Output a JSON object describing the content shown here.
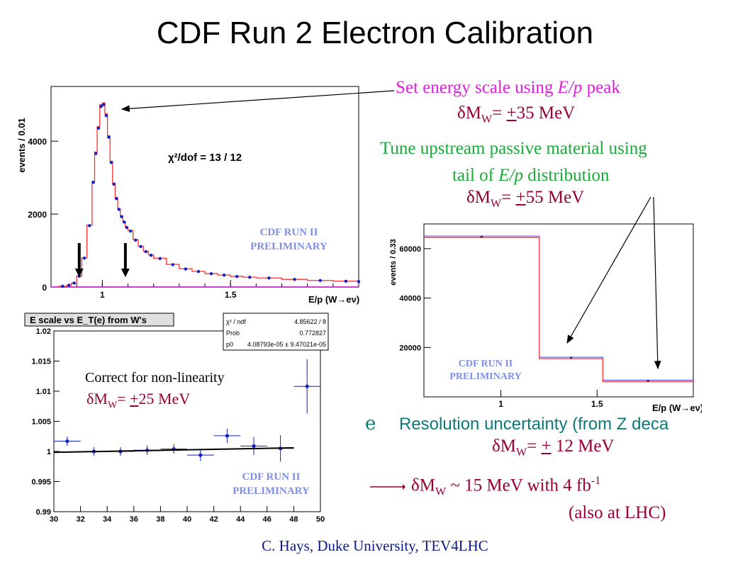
{
  "slide": {
    "title": "CDF Run 2 Electron Calibration",
    "footer": "C. Hays, Duke University, TEV4LHC"
  },
  "annotations": {
    "energy_scale": {
      "line1": "Set energy scale using ",
      "italic": "E/p",
      "line1_end": " peak",
      "delta": "δM",
      "sub": "W",
      "value_prefix": "= ",
      "pm": "+",
      "value": "35 MeV"
    },
    "material": {
      "line1": "Tune upstream passive material using",
      "line2_start": "tail of ",
      "italic": "E/p",
      "line2_end": " distribution",
      "delta": "δM",
      "sub": "W",
      "value_prefix": "= ",
      "pm": "+",
      "value": "55 MeV"
    },
    "nonlinearity": {
      "line1": "Correct for non-linearity",
      "delta": "δM",
      "sub": "W",
      "value_prefix": "= ",
      "pm": "+",
      "value": "25 MeV"
    },
    "resolution": {
      "bullet": "e",
      "text": "Resolution uncertainty (from Z deca",
      "delta": "δM",
      "sub": "W",
      "value_prefix": "= ",
      "pm": "+",
      "value": " 12 MeV"
    },
    "total": {
      "delta": "δM",
      "sub": "W",
      "text": " ~ 15 MeV with 4 fb",
      "sup": "-1",
      "note": "(also at LHC)"
    }
  },
  "colors": {
    "magenta": "#e020e0",
    "dark_red": "#990033",
    "green": "#1aaa3a",
    "teal": "#0b7a78",
    "hist": "#ff3030",
    "points": "#1020c0",
    "prelim": "#7f8fe6"
  },
  "prelim_label": {
    "line1": "CDF RUN II",
    "line2": "PRELIMINARY"
  },
  "chart_data": [
    {
      "type": "line",
      "title": "",
      "xlabel": "E/p (W→eν)",
      "ylabel": "events / 0.01",
      "xlim": [
        0.8,
        2.0
      ],
      "ylim": [
        0,
        5500
      ],
      "xticks": [
        "1",
        "1.5"
      ],
      "yticks": [
        "0",
        "2000",
        "4000"
      ],
      "annotation": "χ²/dof = 13 / 12",
      "x": [
        0.83,
        0.86,
        0.88,
        0.9,
        0.92,
        0.94,
        0.96,
        0.97,
        0.98,
        0.99,
        1.0,
        1.01,
        1.02,
        1.03,
        1.04,
        1.05,
        1.06,
        1.07,
        1.08,
        1.09,
        1.1,
        1.12,
        1.14,
        1.16,
        1.18,
        1.2,
        1.25,
        1.3,
        1.35,
        1.4,
        1.45,
        1.5,
        1.55,
        1.6,
        1.7,
        1.8,
        1.9,
        2.0
      ],
      "series": [
        {
          "values": [
            20,
            50,
            110,
            300,
            800,
            1700,
            2900,
            3700,
            4400,
            5000,
            5050,
            4750,
            4150,
            3450,
            2850,
            2450,
            2150,
            1950,
            1800,
            1650,
            1550,
            1300,
            1120,
            980,
            880,
            790,
            620,
            500,
            430,
            370,
            330,
            290,
            270,
            250,
            210,
            180,
            160,
            150
          ]
        }
      ],
      "arrows_at_x": [
        0.91,
        1.09
      ]
    },
    {
      "type": "bar",
      "title": "",
      "xlabel": "E/p (W→eν)",
      "ylabel": "events / 0.33",
      "xlim": [
        0.6,
        2.0
      ],
      "ylim": [
        0,
        70000
      ],
      "xticks": [
        "1",
        "1.5"
      ],
      "yticks": [
        "20000",
        "40000",
        "60000"
      ],
      "bins": [
        [
          0.6,
          1.2
        ],
        [
          1.2,
          1.53
        ],
        [
          1.53,
          2.0
        ]
      ],
      "values": [
        64500,
        15500,
        6200
      ]
    },
    {
      "type": "scatter",
      "title": "E scale vs E_T(e) from W's",
      "xlabel": "",
      "ylabel": "",
      "xlim": [
        30,
        50
      ],
      "ylim": [
        0.99,
        1.02
      ],
      "xticks": [
        "30",
        "32",
        "34",
        "36",
        "38",
        "40",
        "42",
        "44",
        "46",
        "48",
        "50"
      ],
      "yticks": [
        "0.99",
        "0.995",
        "1",
        "1.005",
        "1.01",
        "1.015",
        "1.02"
      ],
      "x": [
        31,
        33,
        35,
        37,
        39,
        41,
        43,
        45,
        47,
        49
      ],
      "y": [
        1.0017,
        1.0,
        1.0,
        1.0002,
        1.0004,
        0.9994,
        1.0026,
        1.0009,
        1.0005,
        1.0108
      ],
      "xerr": [
        1,
        1,
        1,
        1,
        1,
        1,
        1,
        1,
        1,
        1
      ],
      "yerr": [
        0.0008,
        0.0007,
        0.0007,
        0.0008,
        0.0008,
        0.001,
        0.0012,
        0.0015,
        0.0022,
        0.0045
      ],
      "fit": {
        "x": [
          30,
          48
        ],
        "y": [
          0.99985,
          1.0006
        ]
      },
      "stats": [
        {
          "key": "χ² / ndf",
          "value": "4.85622 / 8"
        },
        {
          "key": "Prob",
          "value": "0.772827"
        },
        {
          "key": "p0",
          "value": "4.08793e-05 ± 9.47021e-05"
        }
      ]
    }
  ]
}
